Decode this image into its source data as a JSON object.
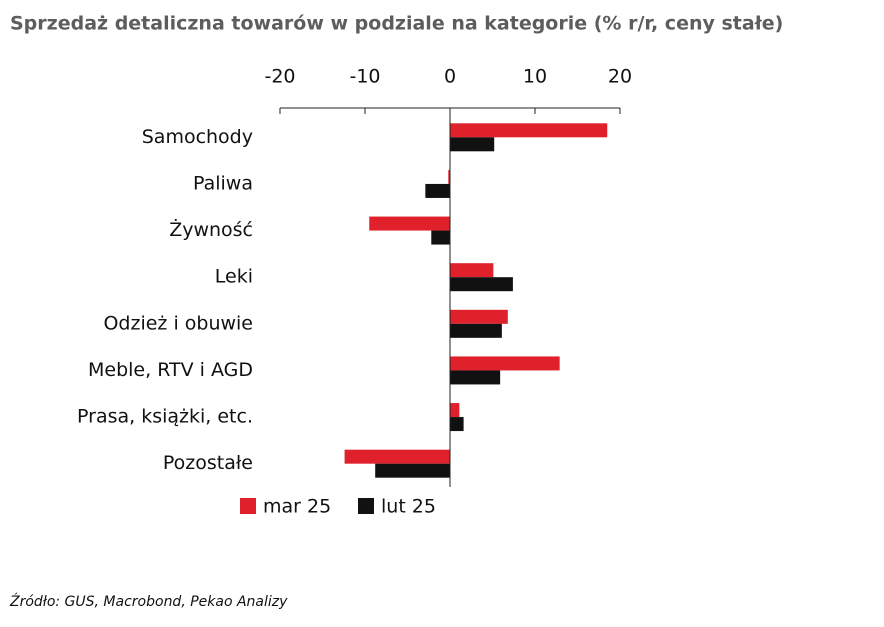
{
  "chart_data": {
    "type": "bar",
    "orientation": "horizontal",
    "title": "Sprzedaż detaliczna towarów w podziale na kategorie (% r/r, ceny stałe)",
    "categories": [
      "Samochody",
      "Paliwa",
      "Żywność",
      "Leki",
      "Odzież i obuwie",
      "Meble, RTV i AGD",
      "Prasa, książki, etc.",
      "Pozostałe"
    ],
    "series": [
      {
        "name": "mar 25",
        "color": "#e0202a",
        "values": [
          18.5,
          -0.2,
          -9.5,
          5.1,
          6.8,
          12.9,
          1.1,
          -12.4
        ]
      },
      {
        "name": "lut 25",
        "color": "#111111",
        "values": [
          5.2,
          -2.9,
          -2.2,
          7.4,
          6.1,
          5.9,
          1.6,
          -8.8
        ]
      }
    ],
    "xlim": [
      -20,
      20
    ],
    "xticks": [
      -20,
      -10,
      0,
      10,
      20
    ],
    "source": "Źródło: GUS, Macrobond, Pekao Analizy"
  }
}
